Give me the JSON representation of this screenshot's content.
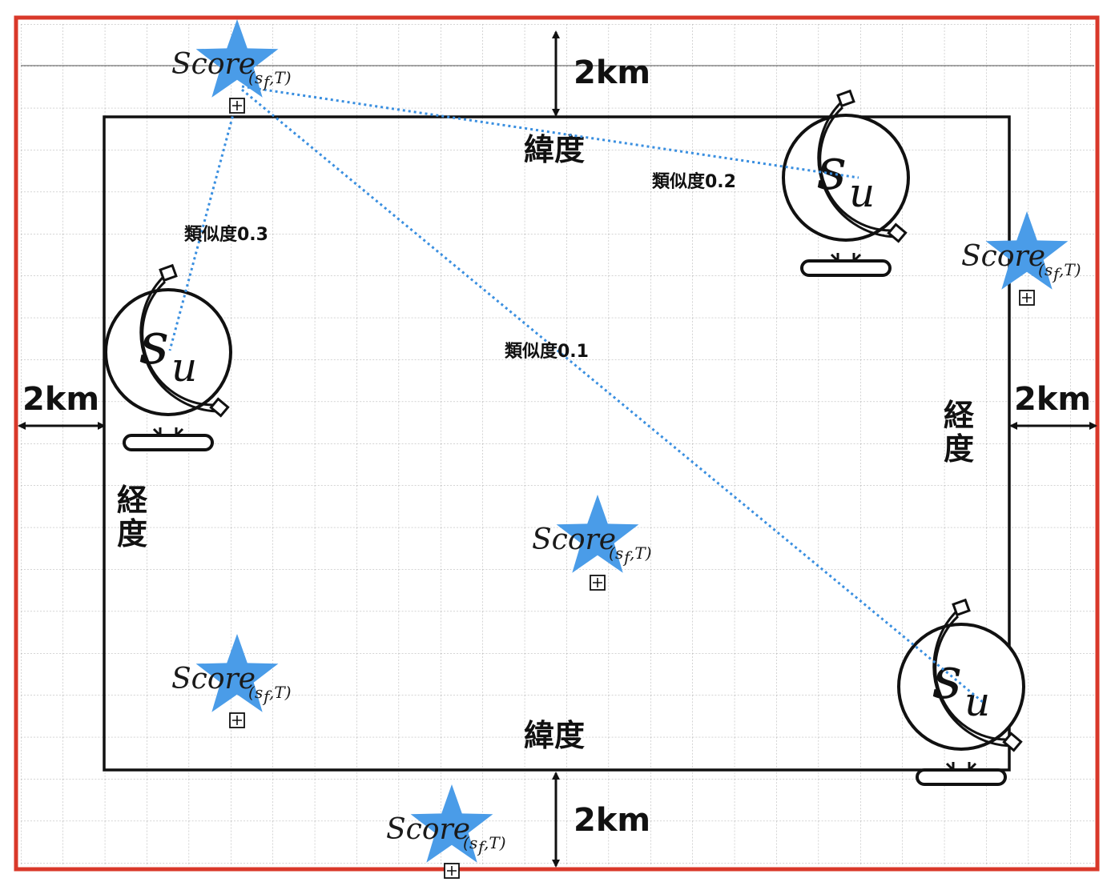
{
  "distance_labels": {
    "top": "2km",
    "bottom": "2km",
    "left": "2km",
    "right": "2km"
  },
  "axis_labels": {
    "latitude_top": "緯度",
    "latitude_bottom": "緯度",
    "longitude_left": [
      "経",
      "度"
    ],
    "longitude_right": [
      "経",
      "度"
    ]
  },
  "similarity_labels": {
    "left_user": "類似度0.3",
    "top_right_user": "類似度0.2",
    "bottom_right_user": "類似度0.1"
  },
  "score_label": {
    "main": "Score",
    "sub_s": "s",
    "sub_f": "f",
    "sub_rest": ",T)",
    "sub_open": "("
  },
  "user_label": {
    "s": "s",
    "u": "u"
  },
  "colors": {
    "frame": "#d9382a",
    "grid": "#a9a9a9",
    "star": "#4a9ce8",
    "link": "#3a8fe0",
    "region": "#111111"
  }
}
